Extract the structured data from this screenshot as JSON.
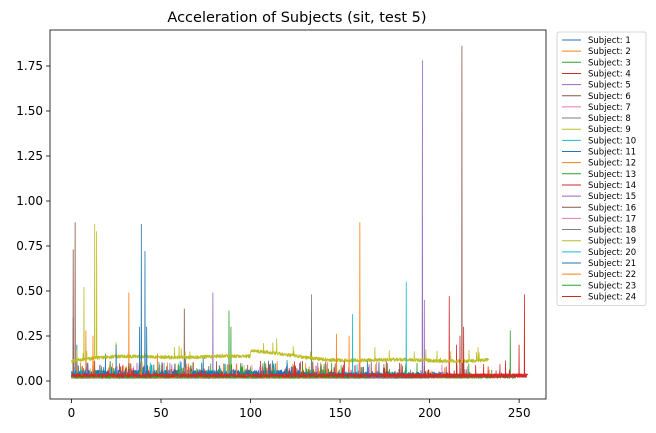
{
  "chart_data": {
    "type": "line",
    "title": "Acceleration of Subjects (sit, test 5)",
    "xlabel": "",
    "ylabel": "",
    "xlim": [
      -12,
      265
    ],
    "ylim": [
      -0.1,
      1.95
    ],
    "x_ticks": [
      0,
      50,
      100,
      150,
      200,
      250
    ],
    "y_ticks": [
      0.0,
      0.25,
      0.5,
      0.75,
      1.0,
      1.25,
      1.5,
      1.75
    ],
    "x_tick_labels": [
      "0",
      "50",
      "100",
      "150",
      "200",
      "250"
    ],
    "y_tick_labels": [
      "0.00",
      "0.25",
      "0.50",
      "0.75",
      "1.00",
      "1.25",
      "1.50",
      "1.75"
    ],
    "grid": false,
    "legend_position": "outside-right",
    "series": [
      {
        "name": "Subject: 1",
        "color": "#1f77b4",
        "end": 212,
        "base": 0.02,
        "noise": 0.03,
        "drift": 0,
        "spikes": [
          [
            1,
            0.35
          ],
          [
            3,
            0.2
          ],
          [
            19,
            0.15
          ]
        ]
      },
      {
        "name": "Subject: 2",
        "color": "#ff7f0e",
        "end": 162,
        "base": 0.02,
        "noise": 0.025,
        "drift": 0,
        "spikes": [
          [
            8,
            0.28
          ],
          [
            32,
            0.49
          ],
          [
            161,
            0.88
          ],
          [
            155,
            0.25
          ]
        ]
      },
      {
        "name": "Subject: 3",
        "color": "#2ca02c",
        "end": 230,
        "base": 0.015,
        "noise": 0.02,
        "drift": 0,
        "spikes": [
          [
            88,
            0.39
          ],
          [
            89,
            0.3
          ],
          [
            193,
            0.1
          ]
        ]
      },
      {
        "name": "Subject: 4",
        "color": "#d62728",
        "end": 253,
        "base": 0.02,
        "noise": 0.02,
        "drift": 0,
        "spikes": [
          [
            211,
            0.47
          ],
          [
            215,
            0.2
          ]
        ]
      },
      {
        "name": "Subject: 5",
        "color": "#9467bd",
        "end": 200,
        "base": 0.015,
        "noise": 0.02,
        "drift": 0,
        "spikes": [
          [
            79,
            0.49
          ],
          [
            196,
            1.78
          ],
          [
            197,
            0.45
          ]
        ]
      },
      {
        "name": "Subject: 6",
        "color": "#8c564b",
        "end": 225,
        "base": 0.02,
        "noise": 0.02,
        "drift": 0,
        "spikes": [
          [
            1,
            0.73
          ],
          [
            2,
            0.88
          ],
          [
            63,
            0.4
          ],
          [
            218,
            1.86
          ]
        ]
      },
      {
        "name": "Subject: 7",
        "color": "#e377c2",
        "end": 226,
        "base": 0.015,
        "noise": 0.02,
        "drift": 0,
        "spikes": [
          [
            221,
            0.08
          ],
          [
            160,
            0.05
          ]
        ]
      },
      {
        "name": "Subject: 8",
        "color": "#7f7f7f",
        "end": 190,
        "base": 0.015,
        "noise": 0.02,
        "drift": 0,
        "spikes": [
          [
            134,
            0.48
          ],
          [
            110,
            0.1
          ]
        ]
      },
      {
        "name": "Subject: 9",
        "color": "#bcbd22",
        "end": 233,
        "base": 0.1,
        "noise": 0.02,
        "drift": 0.06,
        "spikes": [
          [
            7,
            0.52
          ],
          [
            13,
            0.87
          ],
          [
            14,
            0.83
          ]
        ]
      },
      {
        "name": "Subject: 10",
        "color": "#17becf",
        "end": 188,
        "base": 0.015,
        "noise": 0.02,
        "drift": 0,
        "spikes": [
          [
            157,
            0.37
          ],
          [
            187,
            0.55
          ],
          [
            188,
            0.53
          ]
        ]
      },
      {
        "name": "Subject: 11",
        "color": "#1f77b4",
        "end": 130,
        "base": 0.03,
        "noise": 0.03,
        "drift": 0,
        "spikes": [
          [
            39,
            0.87
          ],
          [
            41,
            0.72
          ],
          [
            38,
            0.3
          ]
        ]
      },
      {
        "name": "Subject: 12",
        "color": "#ff7f0e",
        "end": 240,
        "base": 0.015,
        "noise": 0.02,
        "drift": 0,
        "spikes": [
          [
            148,
            0.26
          ],
          [
            100,
            0.08
          ]
        ]
      },
      {
        "name": "Subject: 13",
        "color": "#2ca02c",
        "end": 248,
        "base": 0.015,
        "noise": 0.015,
        "drift": 0,
        "spikes": [
          [
            245,
            0.28
          ],
          [
            60,
            0.05
          ]
        ]
      },
      {
        "name": "Subject: 14",
        "color": "#d62728",
        "end": 254,
        "base": 0.02,
        "noise": 0.02,
        "drift": 0,
        "spikes": [
          [
            250,
            0.2
          ],
          [
            253,
            0.48
          ],
          [
            254,
            0.4
          ]
        ]
      },
      {
        "name": "Subject: 15",
        "color": "#9467bd",
        "end": 170,
        "base": 0.015,
        "noise": 0.02,
        "drift": 0,
        "spikes": [
          [
            55,
            0.1
          ]
        ]
      },
      {
        "name": "Subject: 16",
        "color": "#8c564b",
        "end": 200,
        "base": 0.015,
        "noise": 0.02,
        "drift": 0,
        "spikes": [
          [
            120,
            0.08
          ]
        ]
      },
      {
        "name": "Subject: 17",
        "color": "#e377c2",
        "end": 160,
        "base": 0.015,
        "noise": 0.02,
        "drift": 0,
        "spikes": [
          [
            90,
            0.06
          ]
        ]
      },
      {
        "name": "Subject: 18",
        "color": "#7f7f7f",
        "end": 180,
        "base": 0.015,
        "noise": 0.02,
        "drift": 0,
        "spikes": [
          [
            70,
            0.07
          ]
        ]
      },
      {
        "name": "Subject: 19",
        "color": "#bcbd22",
        "end": 150,
        "base": 0.015,
        "noise": 0.02,
        "drift": 0,
        "spikes": [
          [
            30,
            0.08
          ]
        ]
      },
      {
        "name": "Subject: 20",
        "color": "#17becf",
        "end": 140,
        "base": 0.015,
        "noise": 0.02,
        "drift": 0,
        "spikes": [
          [
            45,
            0.06
          ]
        ]
      },
      {
        "name": "Subject: 21",
        "color": "#1f77b4",
        "end": 175,
        "base": 0.02,
        "noise": 0.025,
        "drift": 0,
        "spikes": [
          [
            25,
            0.2
          ],
          [
            42,
            0.3
          ]
        ]
      },
      {
        "name": "Subject: 22",
        "color": "#ff7f0e",
        "end": 155,
        "base": 0.015,
        "noise": 0.02,
        "drift": 0,
        "spikes": [
          [
            12,
            0.25
          ],
          [
            48,
            0.15
          ]
        ]
      },
      {
        "name": "Subject: 23",
        "color": "#2ca02c",
        "end": 165,
        "base": 0.015,
        "noise": 0.02,
        "drift": 0,
        "spikes": [
          [
            95,
            0.08
          ]
        ]
      },
      {
        "name": "Subject: 24",
        "color": "#d62728",
        "end": 255,
        "base": 0.02,
        "noise": 0.02,
        "drift": 0,
        "spikes": [
          [
            217,
            0.25
          ],
          [
            219,
            0.3
          ]
        ]
      }
    ]
  }
}
